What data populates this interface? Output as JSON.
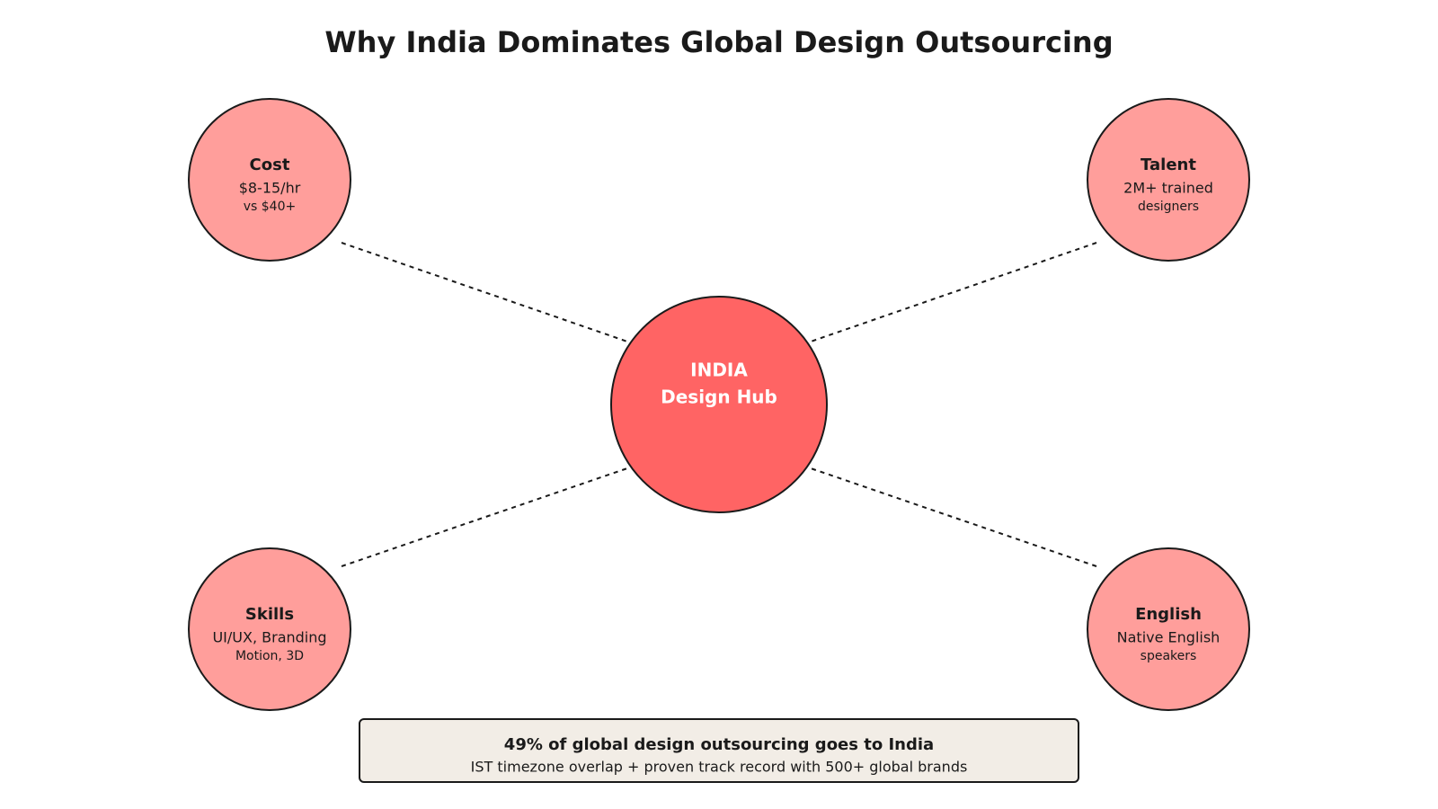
{
  "title": "Why India Dominates Global Design Outsourcing",
  "center": {
    "line1": "INDIA",
    "line2": "Design Hub"
  },
  "nodes": [
    {
      "title": "Cost",
      "line1": "$8-15/hr",
      "line2": "vs $40+"
    },
    {
      "title": "Talent",
      "line1": "2M+ trained",
      "line2": "designers"
    },
    {
      "title": "Skills",
      "line1": "UI/UX, Branding",
      "line2": "Motion, 3D"
    },
    {
      "title": "English",
      "line1": "Native English",
      "line2": "speakers"
    }
  ],
  "footer": {
    "headline": "49% of global design outsourcing goes to India",
    "subtext": "IST timezone overlap + proven track record with 500+ global brands"
  }
}
